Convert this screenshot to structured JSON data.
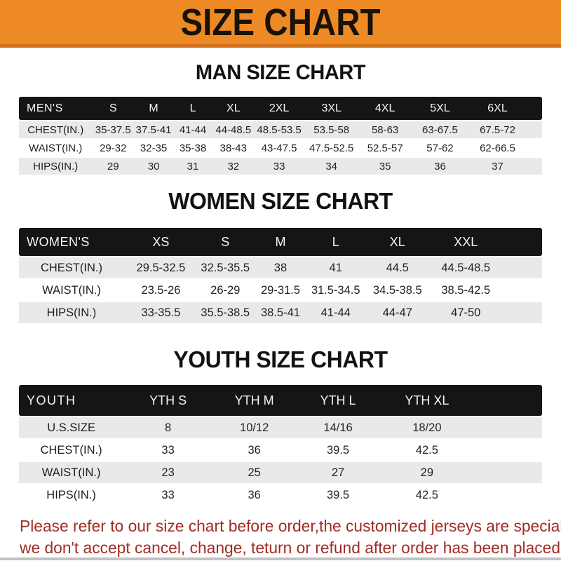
{
  "banner": {
    "title": "SIZE CHART"
  },
  "colors": {
    "accent_orange": "#EE8A25",
    "accent_orange_dark": "#D0701C",
    "header_bar_black": "#151515",
    "row_stripe_gray": "#E9E9E9",
    "note_red": "#A12C25"
  },
  "sections": [
    {
      "id": "men",
      "heading": "MAN SIZE CHART",
      "table": {
        "header_label": "MEN'S",
        "columns": [
          "S",
          "M",
          "L",
          "XL",
          "2XL",
          "3XL",
          "4XL",
          "5XL",
          "6XL"
        ],
        "rows": [
          {
            "label": "CHEST(IN.)",
            "values": [
              "35-37.5",
              "37.5-41",
              "41-44",
              "44-48.5",
              "48.5-53.5",
              "53.5-58",
              "58-63",
              "63-67.5",
              "67.5-72"
            ]
          },
          {
            "label": "WAIST(IN.)",
            "values": [
              "29-32",
              "32-35",
              "35-38",
              "38-43",
              "43-47.5",
              "47.5-52.5",
              "52.5-57",
              "57-62",
              "62-66.5"
            ]
          },
          {
            "label": "HIPS(IN.)",
            "values": [
              "29",
              "30",
              "31",
              "32",
              "33",
              "34",
              "35",
              "36",
              "37"
            ]
          }
        ]
      }
    },
    {
      "id": "women",
      "heading": "WOMEN SIZE CHART",
      "table": {
        "header_label": "WOMEN'S",
        "columns": [
          "XS",
          "S",
          "M",
          "L",
          "XL",
          "XXL"
        ],
        "rows": [
          {
            "label": "CHEST(IN.)",
            "values": [
              "29.5-32.5",
              "32.5-35.5",
              "38",
              "41",
              "44.5",
              "44.5-48.5"
            ]
          },
          {
            "label": "WAIST(IN.)",
            "values": [
              "23.5-26",
              "26-29",
              "29-31.5",
              "31.5-34.5",
              "34.5-38.5",
              "38.5-42.5"
            ]
          },
          {
            "label": "HIPS(IN.)",
            "values": [
              "33-35.5",
              "35.5-38.5",
              "38.5-41",
              "41-44",
              "44-47",
              "47-50"
            ]
          }
        ]
      }
    },
    {
      "id": "youth",
      "heading": "YOUTH SIZE CHART",
      "table": {
        "header_label": "YOUTH",
        "columns": [
          "YTH S",
          "YTH M",
          "YTH L",
          "YTH XL"
        ],
        "rows": [
          {
            "label": "U.S.SIZE",
            "values": [
              "8",
              "10/12",
              "14/16",
              "18/20"
            ]
          },
          {
            "label": "CHEST(IN.)",
            "values": [
              "33",
              "36",
              "39.5",
              "42.5"
            ]
          },
          {
            "label": "WAIST(IN.)",
            "values": [
              "23",
              "25",
              "27",
              "29"
            ]
          },
          {
            "label": "HIPS(IN.)",
            "values": [
              "33",
              "36",
              "39.5",
              "42.5"
            ]
          }
        ]
      }
    }
  ],
  "footer": {
    "line1": "Please refer to our size chart before order,the customized jerseys are special products,",
    "line2": "we don't accept cancel, change, teturn or refund after order has been placed!"
  }
}
